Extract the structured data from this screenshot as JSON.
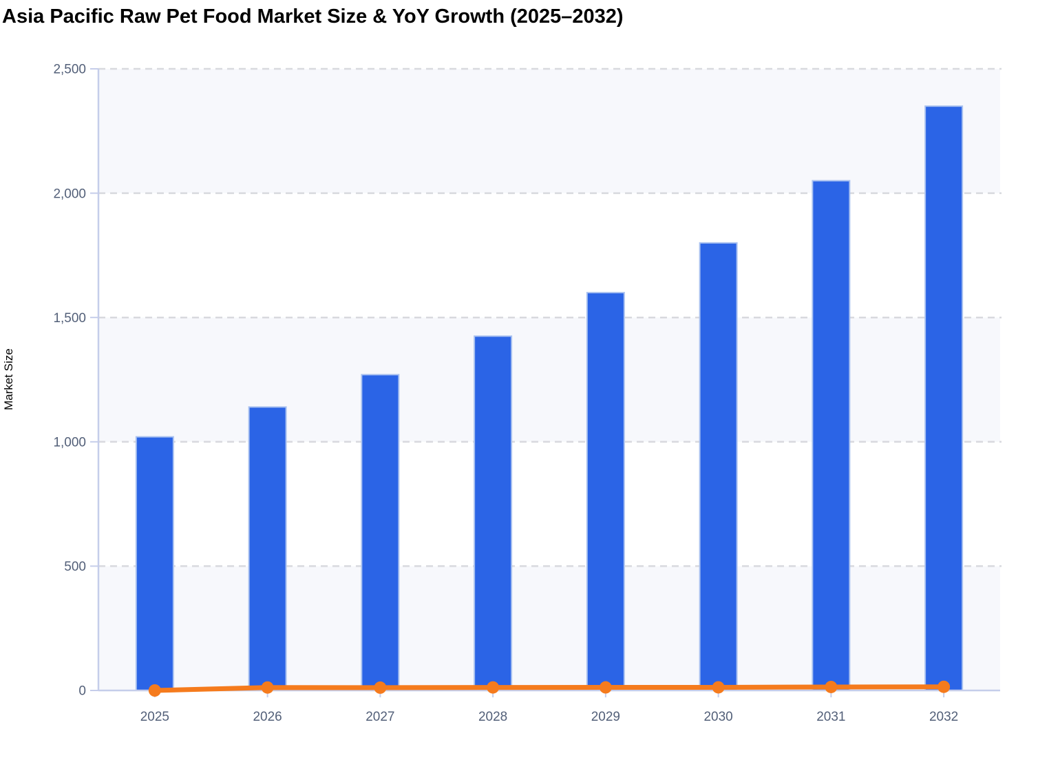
{
  "header": {
    "title": "Asia Pacific Raw Pet Food Market Size & YoY Growth (2025–2032)"
  },
  "chart_data": {
    "type": "combo",
    "title": "Asia Pacific Raw Pet Food Market Size & YoY Growth (2025–2032)",
    "categories": [
      "2025",
      "2026",
      "2027",
      "2028",
      "2029",
      "2030",
      "2031",
      "2032"
    ],
    "series": [
      {
        "name": "Market Size",
        "type": "bar",
        "color": "#2b64e6",
        "values": [
          1020,
          1140,
          1270,
          1425,
          1600,
          1800,
          2050,
          2350
        ]
      },
      {
        "name": "YoY Growth",
        "type": "line",
        "color": "#f57b1d",
        "values": [
          0,
          11.8,
          11.4,
          12.2,
          12.3,
          12.5,
          13.9,
          14.6
        ]
      }
    ],
    "xlabel": "",
    "ylabel": "Market Size",
    "ylim": [
      0,
      2500
    ],
    "yticks": [
      0,
      500,
      1000,
      1500,
      2000,
      2500
    ],
    "ytick_labels": [
      "0",
      "500",
      "1,000",
      "1,500",
      "2,000",
      "2,500"
    ],
    "grid": "horizontal-dashed",
    "band_shading": "alternating-from-top",
    "legend": "none"
  },
  "colors": {
    "title": "#1b3a60",
    "bar": "#2b64e6",
    "bar_border": "#a9c1f0",
    "line": "#f57b1d",
    "axis": "#c5cdea",
    "grid": "#d8d9de",
    "band": "#f7f8fc",
    "label": "#525f78",
    "background": "#ffffff"
  }
}
